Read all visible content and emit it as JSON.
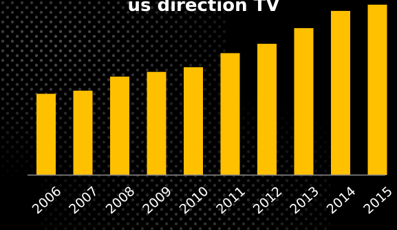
{
  "chart_data": {
    "type": "bar",
    "title": "us direction TV",
    "xlabel": "",
    "ylabel": "",
    "categories": [
      "2006",
      "2007",
      "2008",
      "2009",
      "2010",
      "2011",
      "2012",
      "2013",
      "2014",
      "2015"
    ],
    "values": [
      52,
      54,
      63,
      66,
      69,
      78,
      84,
      94,
      105,
      109
    ],
    "ylim": [
      0,
      112
    ],
    "grid": false,
    "legend": "none",
    "colors": {
      "bar": "#FFC000",
      "axis": "#8c8c8c",
      "text": "#ffffff",
      "background": "#000000",
      "dots": "#6a6a6a"
    }
  }
}
